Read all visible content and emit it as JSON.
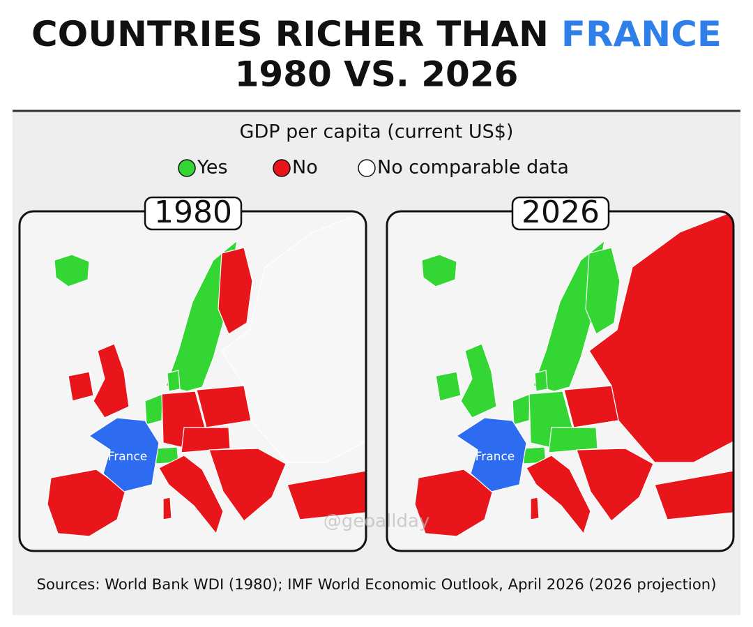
{
  "header": {
    "title_part1": "COUNTRIES RICHER THAN",
    "title_highlight": "FRANCE",
    "subtitle": "1980 VS. 2026"
  },
  "legend": {
    "title": "GDP per capita (current US$)",
    "items": [
      {
        "label": "Yes",
        "color": "#33d633"
      },
      {
        "label": "No",
        "color": "#e8161b"
      },
      {
        "label": "No comparable data",
        "color": "#ffffff"
      }
    ]
  },
  "maps": [
    {
      "year": "1980",
      "label": "France"
    },
    {
      "year": "2026",
      "label": "France"
    }
  ],
  "france_color": "#2d6cf0",
  "watermark": "@geoallday",
  "source": "Sources: World Bank WDI (1980); IMF World Economic Outlook, April 2026 (2026 projection)"
}
